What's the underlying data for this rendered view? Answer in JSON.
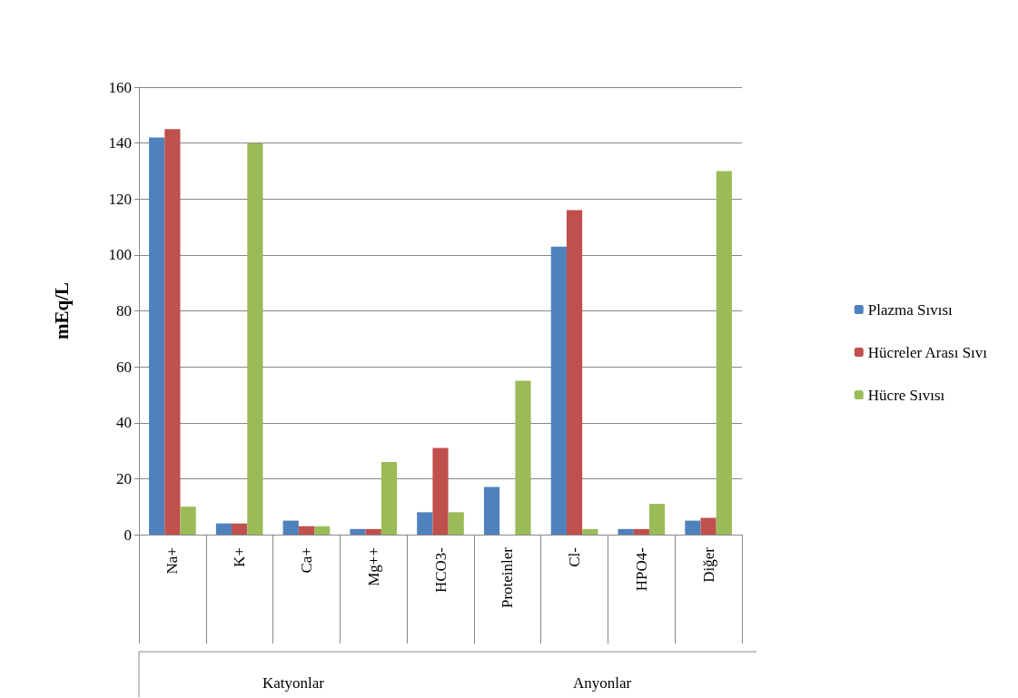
{
  "chart_data": {
    "type": "bar",
    "ylabel": "mEq/L",
    "categories": [
      "Na+",
      "K+",
      "Ca+",
      "Mg++",
      "HCO3-",
      "Proteinler",
      "Cl-",
      "HPO4-",
      "Diğer"
    ],
    "series": [
      {
        "name": "Plazma Sıvısı",
        "color": "#4f81bd",
        "values": [
          142,
          4,
          5,
          2,
          8,
          17,
          103,
          2,
          5
        ]
      },
      {
        "name": "Hücreler Arası Sıvı",
        "color": "#c0504d",
        "values": [
          145,
          4,
          3,
          2,
          31,
          0,
          116,
          2,
          6
        ]
      },
      {
        "name": "Hücre Sıvısı",
        "color": "#9bbb59",
        "values": [
          10,
          140,
          3,
          26,
          8,
          55,
          2,
          11,
          130
        ]
      }
    ],
    "ylim": [
      0,
      160
    ],
    "yticks": [
      0,
      20,
      40,
      60,
      80,
      100,
      120,
      140,
      160
    ],
    "grid": "y",
    "legend": "right",
    "annotations": [
      "Katyonlar",
      "Anyonlar"
    ]
  }
}
